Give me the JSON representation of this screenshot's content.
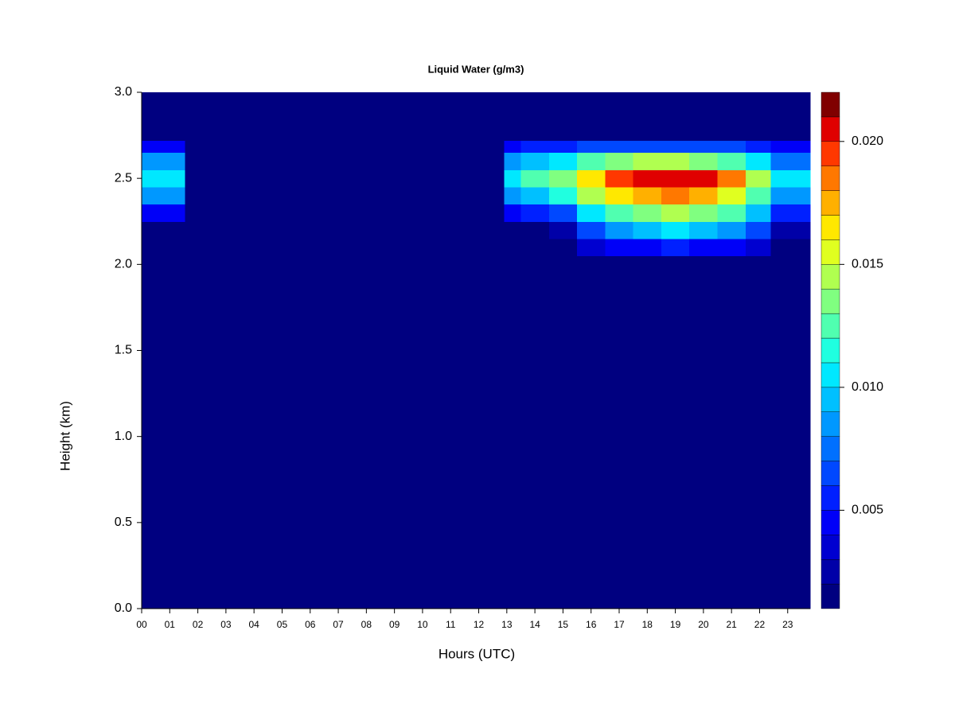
{
  "chart_data": {
    "type": "heatmap",
    "title": "Liquid Water (g/m3)",
    "xlabel": "Hours (UTC)",
    "ylabel": "Height (km)",
    "xlim": [
      0,
      23.8
    ],
    "ylim": [
      0,
      3
    ],
    "xticks": [
      {
        "value": 0,
        "label": "00"
      },
      {
        "value": 1,
        "label": "01"
      },
      {
        "value": 2,
        "label": "02"
      },
      {
        "value": 3,
        "label": "03"
      },
      {
        "value": 4,
        "label": "04"
      },
      {
        "value": 5,
        "label": "05"
      },
      {
        "value": 6,
        "label": "06"
      },
      {
        "value": 7,
        "label": "07"
      },
      {
        "value": 8,
        "label": "08"
      },
      {
        "value": 9,
        "label": "09"
      },
      10,
      11,
      12,
      13,
      14,
      15,
      16,
      17,
      18,
      19,
      20,
      21,
      22,
      23
    ],
    "yticks": [
      {
        "value": 0,
        "label": "0.0"
      },
      0.5,
      {
        "value": 1,
        "label": "1.0"
      },
      1.5,
      {
        "value": 2,
        "label": "2.0"
      },
      2.5,
      {
        "value": 3,
        "label": "3.0"
      }
    ],
    "x_edges": [
      0,
      1.55,
      12.9,
      13.5,
      14.5,
      15.5,
      16.5,
      17.5,
      18.5,
      19.5,
      20.5,
      21.5,
      22.4,
      23.8
    ],
    "y_edges": [
      0,
      2.05,
      2.15,
      2.25,
      2.35,
      2.45,
      2.55,
      2.65,
      2.72,
      3.0
    ],
    "z": [
      [
        0.001,
        0.001,
        0.001,
        0.004,
        0.008,
        0.01,
        0.008,
        0.004,
        0.001
      ],
      [
        0.001,
        0.001,
        0.001,
        0.001,
        0.001,
        0.001,
        0.001,
        0.001,
        0.001
      ],
      [
        0.001,
        0.001,
        0.001,
        0.004,
        0.008,
        0.01,
        0.008,
        0.004,
        0.001
      ],
      [
        0.001,
        0.001,
        0.001,
        0.005,
        0.009,
        0.012,
        0.009,
        0.005,
        0.001
      ],
      [
        0.001,
        0.001,
        0.002,
        0.006,
        0.011,
        0.013,
        0.01,
        0.005,
        0.001
      ],
      [
        0.001,
        0.003,
        0.006,
        0.01,
        0.014,
        0.016,
        0.012,
        0.006,
        0.001
      ],
      [
        0.001,
        0.004,
        0.008,
        0.012,
        0.016,
        0.019,
        0.013,
        0.006,
        0.001
      ],
      [
        0.001,
        0.004,
        0.009,
        0.013,
        0.017,
        0.02,
        0.014,
        0.006,
        0.001
      ],
      [
        0.001,
        0.005,
        0.01,
        0.014,
        0.018,
        0.02,
        0.014,
        0.006,
        0.001
      ],
      [
        0.001,
        0.004,
        0.009,
        0.013,
        0.017,
        0.02,
        0.013,
        0.006,
        0.001
      ],
      [
        0.001,
        0.004,
        0.008,
        0.012,
        0.015,
        0.018,
        0.012,
        0.006,
        0.001
      ],
      [
        0.001,
        0.003,
        0.006,
        0.009,
        0.012,
        0.014,
        0.01,
        0.005,
        0.001
      ],
      [
        0.001,
        0.001,
        0.002,
        0.005,
        0.008,
        0.01,
        0.007,
        0.004,
        0.001
      ]
    ],
    "clim": [
      0.001,
      0.022
    ],
    "colors": [
      "#000080",
      "#0000A8",
      "#0000D0",
      "#0000F8",
      "#0020FF",
      "#0048FF",
      "#0070FF",
      "#0098FF",
      "#00C0FF",
      "#00E8FF",
      "#20FFE0",
      "#50FFB0",
      "#80FF80",
      "#B0FF50",
      "#E0FF20",
      "#FFE800",
      "#FFB000",
      "#FF7800",
      "#FF3800",
      "#E00000",
      "#800000"
    ],
    "cticks": [
      0.005,
      {
        "value": 0.01,
        "label": "0.010"
      },
      0.015,
      {
        "value": 0.02,
        "label": "0.020"
      }
    ]
  }
}
